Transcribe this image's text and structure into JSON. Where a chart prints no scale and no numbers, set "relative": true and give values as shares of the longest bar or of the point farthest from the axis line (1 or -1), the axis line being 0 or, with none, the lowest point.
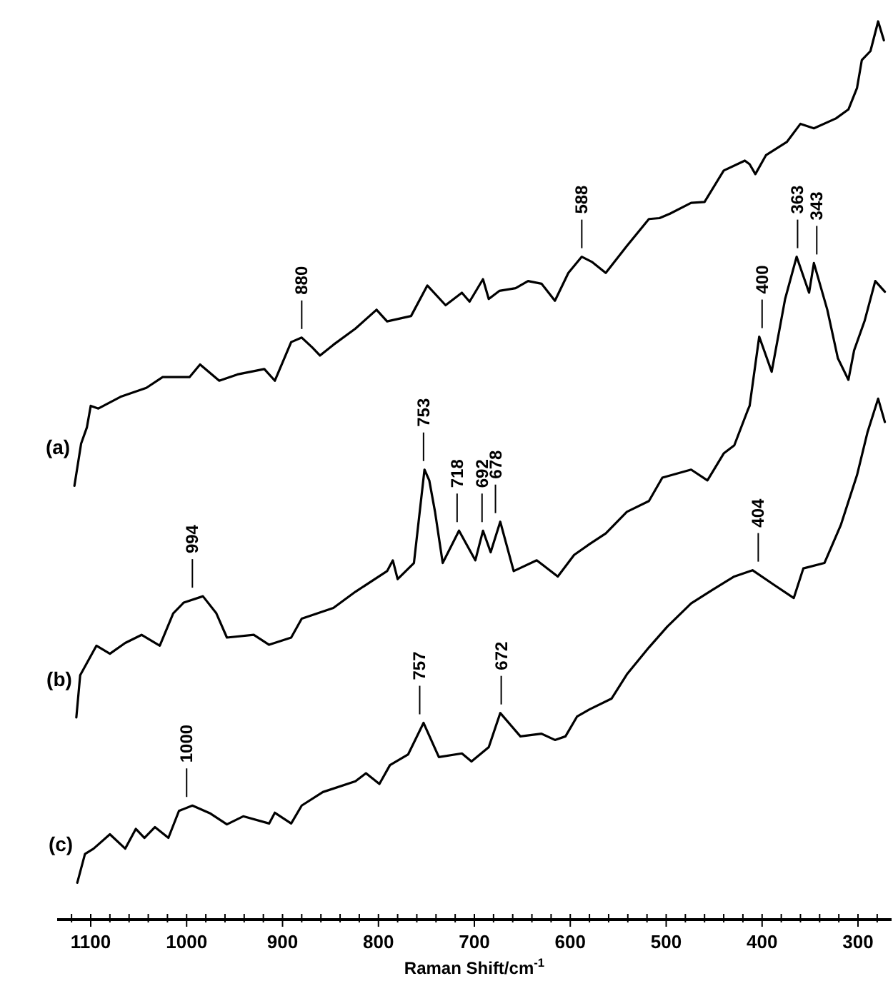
{
  "chart_data": {
    "type": "line",
    "relative": true,
    "xlabel": "Raman Shift/cm$^{-1}$",
    "xlim": [
      1135,
      265
    ],
    "xticks": [
      {
        "value": 1120,
        "label": null
      },
      1100,
      {
        "value": 1080,
        "label": null
      },
      {
        "value": 1060,
        "label": null
      },
      {
        "value": 1040,
        "label": null
      },
      {
        "value": 1020,
        "label": null
      },
      1000,
      {
        "value": 980,
        "label": null
      },
      {
        "value": 960,
        "label": null
      },
      {
        "value": 940,
        "label": null
      },
      {
        "value": 920,
        "label": null
      },
      900,
      {
        "value": 880,
        "label": null
      },
      {
        "value": 860,
        "label": null
      },
      {
        "value": 840,
        "label": null
      },
      {
        "value": 820,
        "label": null
      },
      800,
      {
        "value": 780,
        "label": null
      },
      {
        "value": 760,
        "label": null
      },
      {
        "value": 740,
        "label": null
      },
      {
        "value": 720,
        "label": null
      },
      700,
      {
        "value": 680,
        "label": null
      },
      {
        "value": 660,
        "label": null
      },
      {
        "value": 640,
        "label": null
      },
      {
        "value": 620,
        "label": null
      },
      600,
      {
        "value": 580,
        "label": null
      },
      {
        "value": 560,
        "label": null
      },
      {
        "value": 540,
        "label": null
      },
      {
        "value": 520,
        "label": null
      },
      500,
      {
        "value": 480,
        "label": null
      },
      {
        "value": 460,
        "label": null
      },
      {
        "value": 440,
        "label": null
      },
      {
        "value": 420,
        "label": null
      },
      400,
      {
        "value": 380,
        "label": null
      },
      {
        "value": 360,
        "label": null
      },
      {
        "value": 340,
        "label": null
      },
      {
        "value": 320,
        "label": null
      },
      300,
      {
        "value": 280,
        "label": null
      }
    ],
    "grid": false,
    "marker": "none",
    "line_style": "solid",
    "series": [
      {
        "name": "(a)",
        "color": "#000000",
        "x": [
          1117,
          1110,
          1104,
          1100,
          1092,
          1069,
          1042,
          1025,
          997,
          986,
          966,
          947,
          919,
          908,
          891,
          880,
          869,
          861,
          847,
          824,
          802,
          791,
          766,
          749,
          730,
          713,
          705,
          691,
          685,
          674,
          657,
          644,
          630,
          616,
          602,
          588,
          577,
          563,
          541,
          518,
          507,
          496,
          474,
          460,
          440,
          418,
          413,
          407,
          396,
          374,
          360,
          346,
          323,
          310,
          301,
          296,
          287,
          279,
          273
        ],
        "values": [
          0.483,
          0.53,
          0.548,
          0.572,
          0.569,
          0.582,
          0.592,
          0.604,
          0.604,
          0.618,
          0.6,
          0.607,
          0.613,
          0.6,
          0.643,
          0.648,
          0.637,
          0.628,
          0.64,
          0.658,
          0.679,
          0.666,
          0.672,
          0.706,
          0.684,
          0.698,
          0.688,
          0.713,
          0.691,
          0.7,
          0.703,
          0.711,
          0.708,
          0.689,
          0.72,
          0.738,
          0.732,
          0.72,
          0.75,
          0.78,
          0.781,
          0.786,
          0.798,
          0.799,
          0.834,
          0.845,
          0.841,
          0.83,
          0.851,
          0.866,
          0.886,
          0.881,
          0.892,
          0.902,
          0.926,
          0.957,
          0.967,
          1.0,
          0.979
        ]
      },
      {
        "name": "(b)",
        "color": "#000000",
        "x": [
          1115,
          1111,
          1094,
          1080,
          1064,
          1047,
          1028,
          1014,
          1003,
          983,
          969,
          958,
          930,
          914,
          891,
          880,
          847,
          824,
          791,
          785,
          780,
          763,
          752,
          747,
          741,
          733,
          716,
          699,
          691,
          683,
          673,
          659,
          635,
          613,
          596,
          580,
          563,
          541,
          518,
          504,
          474,
          457,
          440,
          429,
          415,
          413,
          403,
          390,
          376,
          364,
          351,
          346,
          332,
          321,
          310,
          304,
          293,
          282,
          272
        ],
        "values": [
          0.225,
          0.272,
          0.305,
          0.296,
          0.308,
          0.317,
          0.305,
          0.341,
          0.353,
          0.36,
          0.341,
          0.314,
          0.317,
          0.306,
          0.314,
          0.335,
          0.347,
          0.365,
          0.388,
          0.4,
          0.379,
          0.397,
          0.501,
          0.489,
          0.454,
          0.397,
          0.433,
          0.4,
          0.433,
          0.409,
          0.443,
          0.388,
          0.4,
          0.382,
          0.406,
          0.418,
          0.43,
          0.454,
          0.466,
          0.492,
          0.501,
          0.489,
          0.519,
          0.528,
          0.567,
          0.572,
          0.649,
          0.61,
          0.691,
          0.738,
          0.698,
          0.731,
          0.679,
          0.625,
          0.601,
          0.634,
          0.667,
          0.711,
          0.699
        ]
      },
      {
        "name": "(c)",
        "color": "#000000",
        "x": [
          1114,
          1106,
          1097,
          1080,
          1064,
          1053,
          1044,
          1033,
          1019,
          1008,
          994,
          975,
          958,
          941,
          914,
          908,
          891,
          880,
          858,
          824,
          813,
          799,
          788,
          769,
          753,
          737,
          713,
          703,
          685,
          673,
          652,
          630,
          616,
          605,
          593,
          580,
          557,
          541,
          518,
          499,
          474,
          452,
          429,
          410,
          388,
          367,
          357,
          335,
          318,
          301,
          290,
          279,
          272
        ],
        "values": [
          0.041,
          0.073,
          0.079,
          0.095,
          0.079,
          0.101,
          0.091,
          0.103,
          0.091,
          0.121,
          0.127,
          0.118,
          0.106,
          0.115,
          0.107,
          0.119,
          0.107,
          0.127,
          0.142,
          0.154,
          0.163,
          0.151,
          0.172,
          0.184,
          0.219,
          0.181,
          0.185,
          0.176,
          0.192,
          0.23,
          0.204,
          0.207,
          0.2,
          0.204,
          0.226,
          0.234,
          0.246,
          0.273,
          0.303,
          0.326,
          0.352,
          0.367,
          0.382,
          0.389,
          0.373,
          0.358,
          0.391,
          0.397,
          0.439,
          0.495,
          0.543,
          0.58,
          0.554
        ]
      }
    ],
    "annotations": [
      {
        "text": "880",
        "x": 880,
        "y": 0.648
      },
      {
        "text": "588",
        "x": 588,
        "y": 0.738
      },
      {
        "text": "400",
        "x": 400,
        "y": 0.649
      },
      {
        "text": "363",
        "x": 363,
        "y": 0.738
      },
      {
        "text": "343",
        "x": 343,
        "y": 0.731
      },
      {
        "text": "994",
        "x": 994,
        "y": 0.36
      },
      {
        "text": "753",
        "x": 753,
        "y": 0.501
      },
      {
        "text": "718",
        "x": 718,
        "y": 0.433
      },
      {
        "text": "692",
        "x": 692,
        "y": 0.433
      },
      {
        "text": "678",
        "x": 678,
        "y": 0.443
      },
      {
        "text": "1000",
        "x": 1000,
        "y": 0.127
      },
      {
        "text": "757",
        "x": 757,
        "y": 0.219
      },
      {
        "text": "672",
        "x": 672,
        "y": 0.23
      },
      {
        "text": "404",
        "x": 404,
        "y": 0.389
      }
    ]
  }
}
